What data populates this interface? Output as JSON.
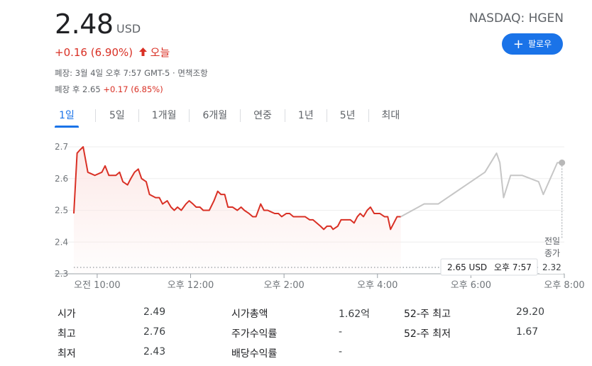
{
  "header": {
    "price": "2.48",
    "currency": "USD",
    "ticker": "NASDAQ: HGEN",
    "change": "+0.16 (6.90%)",
    "change_period": "오늘",
    "follow_label": "팔로우",
    "close_info": "폐장: 3월 4일 오후 7:57 GMT-5 · 면책조항",
    "after_hours_label": "폐장 후 2.65",
    "after_hours_change": "+0.17 (6.85%)"
  },
  "tabs": [
    "1일",
    "5일",
    "1개월",
    "6개월",
    "연중",
    "1년",
    "5년",
    "최대"
  ],
  "active_tab": 0,
  "colors": {
    "accent": "#1a73e8",
    "down_up_red": "#d93025",
    "after_hours_line": "#c6c6c6"
  },
  "chart_data": {
    "type": "line",
    "ylim": [
      2.3,
      2.7
    ],
    "y_ticks": [
      "2.7",
      "2.6",
      "2.5",
      "2.4",
      "2.3"
    ],
    "x_ticks": [
      "오전 10:00",
      "오후 12:00",
      "오후 2:00",
      "오후 4:00",
      "오후 6:00",
      "오후 8:00"
    ],
    "previous_close": {
      "label_line1": "전일",
      "label_line2": "종가",
      "value": 2.32
    },
    "tooltip": {
      "price": "2.65 USD",
      "time": "오후 7:57"
    },
    "series": [
      {
        "session": "regular",
        "points": [
          [
            9.5,
            2.49
          ],
          [
            9.57,
            2.68
          ],
          [
            9.63,
            2.69
          ],
          [
            9.7,
            2.7
          ],
          [
            9.8,
            2.62
          ],
          [
            9.95,
            2.61
          ],
          [
            10.1,
            2.62
          ],
          [
            10.17,
            2.64
          ],
          [
            10.25,
            2.61
          ],
          [
            10.4,
            2.61
          ],
          [
            10.48,
            2.62
          ],
          [
            10.55,
            2.59
          ],
          [
            10.65,
            2.58
          ],
          [
            10.72,
            2.6
          ],
          [
            10.8,
            2.62
          ],
          [
            10.88,
            2.63
          ],
          [
            10.95,
            2.6
          ],
          [
            11.05,
            2.59
          ],
          [
            11.12,
            2.55
          ],
          [
            11.25,
            2.54
          ],
          [
            11.33,
            2.54
          ],
          [
            11.4,
            2.52
          ],
          [
            11.5,
            2.53
          ],
          [
            11.58,
            2.51
          ],
          [
            11.65,
            2.5
          ],
          [
            11.72,
            2.51
          ],
          [
            11.8,
            2.5
          ],
          [
            11.9,
            2.52
          ],
          [
            11.97,
            2.53
          ],
          [
            12.05,
            2.52
          ],
          [
            12.12,
            2.51
          ],
          [
            12.2,
            2.51
          ],
          [
            12.27,
            2.5
          ],
          [
            12.4,
            2.5
          ],
          [
            12.5,
            2.53
          ],
          [
            12.58,
            2.56
          ],
          [
            12.65,
            2.55
          ],
          [
            12.73,
            2.55
          ],
          [
            12.8,
            2.51
          ],
          [
            12.9,
            2.51
          ],
          [
            13.0,
            2.5
          ],
          [
            13.08,
            2.51
          ],
          [
            13.15,
            2.5
          ],
          [
            13.25,
            2.49
          ],
          [
            13.33,
            2.48
          ],
          [
            13.4,
            2.48
          ],
          [
            13.5,
            2.52
          ],
          [
            13.57,
            2.5
          ],
          [
            13.65,
            2.5
          ],
          [
            13.8,
            2.49
          ],
          [
            13.88,
            2.49
          ],
          [
            13.95,
            2.48
          ],
          [
            14.05,
            2.49
          ],
          [
            14.12,
            2.49
          ],
          [
            14.2,
            2.48
          ],
          [
            14.3,
            2.48
          ],
          [
            14.45,
            2.48
          ],
          [
            14.55,
            2.47
          ],
          [
            14.62,
            2.47
          ],
          [
            14.7,
            2.46
          ],
          [
            14.78,
            2.45
          ],
          [
            14.85,
            2.44
          ],
          [
            14.92,
            2.45
          ],
          [
            15.0,
            2.45
          ],
          [
            15.05,
            2.44
          ],
          [
            15.15,
            2.45
          ],
          [
            15.22,
            2.47
          ],
          [
            15.3,
            2.47
          ],
          [
            15.42,
            2.47
          ],
          [
            15.5,
            2.46
          ],
          [
            15.57,
            2.48
          ],
          [
            15.63,
            2.49
          ],
          [
            15.7,
            2.48
          ],
          [
            15.78,
            2.5
          ],
          [
            15.85,
            2.51
          ],
          [
            15.93,
            2.49
          ],
          [
            16.05,
            2.49
          ],
          [
            16.15,
            2.48
          ],
          [
            16.22,
            2.48
          ],
          [
            16.28,
            2.44
          ],
          [
            16.35,
            2.46
          ],
          [
            16.42,
            2.48
          ],
          [
            16.5,
            2.48
          ]
        ]
      },
      {
        "session": "after_hours",
        "points": [
          [
            16.5,
            2.48
          ],
          [
            16.75,
            2.5
          ],
          [
            17.0,
            2.52
          ],
          [
            17.3,
            2.52
          ],
          [
            17.6,
            2.55
          ],
          [
            17.9,
            2.58
          ],
          [
            18.3,
            2.62
          ],
          [
            18.55,
            2.68
          ],
          [
            18.62,
            2.65
          ],
          [
            18.7,
            2.54
          ],
          [
            18.85,
            2.61
          ],
          [
            19.1,
            2.61
          ],
          [
            19.45,
            2.59
          ],
          [
            19.55,
            2.55
          ],
          [
            19.7,
            2.6
          ],
          [
            19.85,
            2.65
          ],
          [
            19.95,
            2.65
          ]
        ]
      }
    ]
  },
  "stats": {
    "col1": [
      {
        "label": "시가",
        "value": "2.49"
      },
      {
        "label": "최고",
        "value": "2.76"
      },
      {
        "label": "최저",
        "value": "2.43"
      }
    ],
    "col2": [
      {
        "label": "시가총액",
        "value": "1.62억"
      },
      {
        "label": "주가수익률",
        "value": "-"
      },
      {
        "label": "배당수익률",
        "value": "-"
      }
    ],
    "col3": [
      {
        "label": "52-주 최고",
        "value": "29.20"
      },
      {
        "label": "52-주 최저",
        "value": "1.67"
      }
    ]
  }
}
